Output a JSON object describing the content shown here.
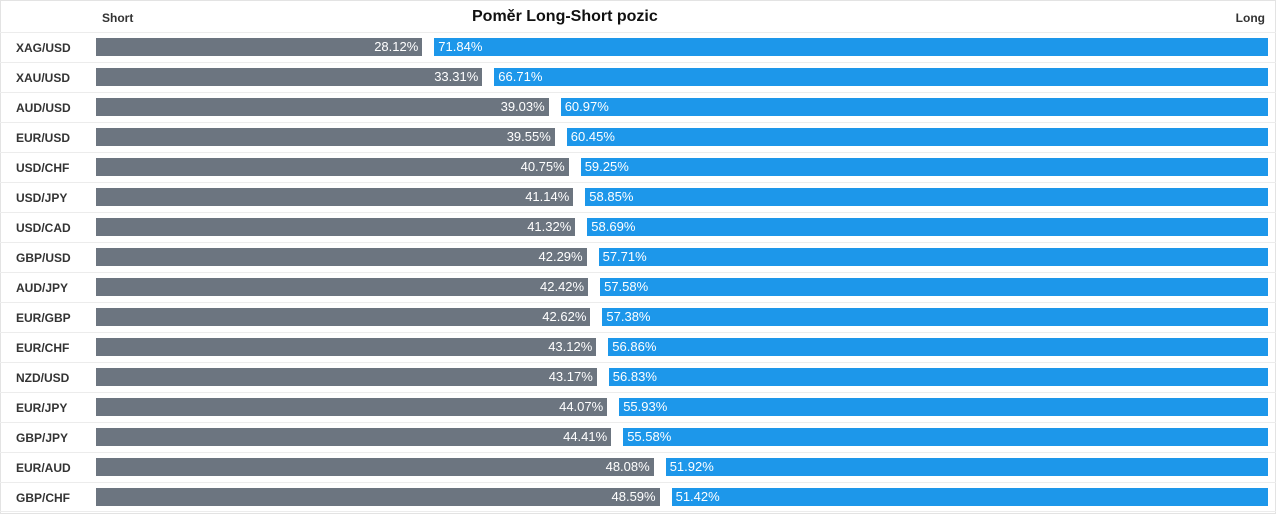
{
  "header": {
    "short_label": "Short",
    "title": "Poměr Long-Short pozic",
    "long_label": "Long"
  },
  "colors": {
    "short": "#6c7580",
    "long": "#1d97ea"
  },
  "chart_data": {
    "type": "bar",
    "title": "Poměr Long-Short pozic",
    "categories": [
      "XAG/USD",
      "XAU/USD",
      "AUD/USD",
      "EUR/USD",
      "USD/CHF",
      "USD/JPY",
      "USD/CAD",
      "GBP/USD",
      "AUD/JPY",
      "EUR/GBP",
      "EUR/CHF",
      "NZD/USD",
      "EUR/JPY",
      "GBP/JPY",
      "EUR/AUD",
      "GBP/CHF"
    ],
    "series": [
      {
        "name": "Short",
        "values": [
          28.12,
          33.31,
          39.03,
          39.55,
          40.75,
          41.14,
          41.32,
          42.29,
          42.42,
          42.62,
          43.12,
          43.17,
          44.07,
          44.41,
          48.08,
          48.59
        ]
      },
      {
        "name": "Long",
        "values": [
          71.84,
          66.71,
          60.97,
          60.45,
          59.25,
          58.85,
          58.69,
          57.71,
          57.58,
          57.38,
          56.86,
          56.83,
          55.93,
          55.58,
          51.92,
          51.42
        ]
      }
    ],
    "labels": {
      "short": [
        "28.12%",
        "33.31%",
        "39.03%",
        "39.55%",
        "40.75%",
        "41.14%",
        "41.32%",
        "42.29%",
        "42.42%",
        "42.62%",
        "43.12%",
        "43.17%",
        "44.07%",
        "44.41%",
        "48.08%",
        "48.59%"
      ],
      "long": [
        "71.84%",
        "66.71%",
        "60.97%",
        "60.45%",
        "59.25%",
        "58.85%",
        "58.69%",
        "57.71%",
        "57.58%",
        "57.38%",
        "56.86%",
        "56.83%",
        "55.93%",
        "55.58%",
        "51.92%",
        "51.42%"
      ]
    },
    "stacked": true,
    "xlim": [
      0,
      100
    ],
    "grid": false
  }
}
